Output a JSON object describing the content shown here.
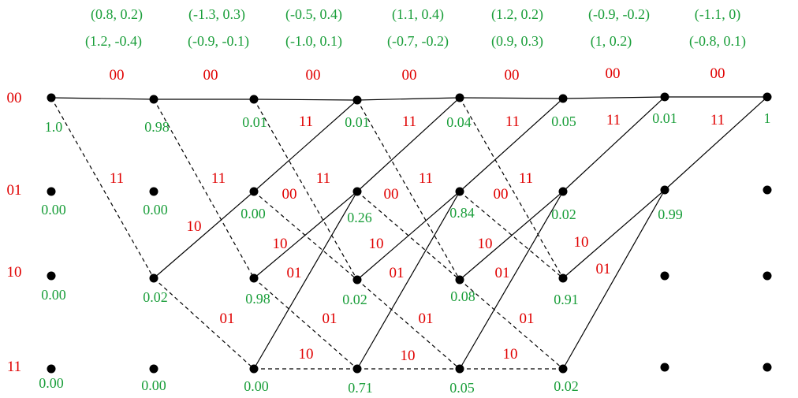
{
  "received_pairs": {
    "row1": [
      "(0.8, 0.2)",
      "(-1.3, 0.3)",
      "(-0.5, 0.4)",
      "(1.1, 0.4)",
      "(1.2, 0.2)",
      "(-0.9, -0.2)",
      "(-1.1, 0)"
    ],
    "row2": [
      "(1.2, -0.4)",
      "(-0.9, -0.1)",
      "(-1.0, 0.1)",
      "(-0.7, -0.2)",
      "(0.9, 0.3)",
      "(1, 0.2)",
      "(-0.8, 0.1)"
    ]
  },
  "top_branch_labels": [
    "00",
    "00",
    "00",
    "00",
    "00",
    "00",
    "00"
  ],
  "states": [
    "00",
    "01",
    "10",
    "11"
  ],
  "metrics": {
    "t0": [
      "1.0",
      "0.00",
      "0.00",
      "0.00"
    ],
    "t1": [
      "0.98",
      "0.00",
      "0.02",
      "0.00"
    ],
    "t2": [
      "0.01",
      "0.00",
      "0.98",
      "0.00"
    ],
    "t3": [
      "0.01",
      "0.26",
      "0.02",
      "0.71"
    ],
    "t4": [
      "0.04",
      "0.84",
      "0.08",
      "0.05"
    ],
    "t5": [
      "0.05",
      "0.02",
      "0.91",
      "0.02"
    ],
    "t6": [
      "0.01",
      "0.99"
    ],
    "t7": [
      "1"
    ]
  },
  "branch_labels": {
    "l11": "11",
    "l10": "10",
    "l00": "00",
    "l01": "01"
  },
  "colors": {
    "metric": "#1a9e3a",
    "label": "#e00000",
    "edge": "#000000"
  }
}
